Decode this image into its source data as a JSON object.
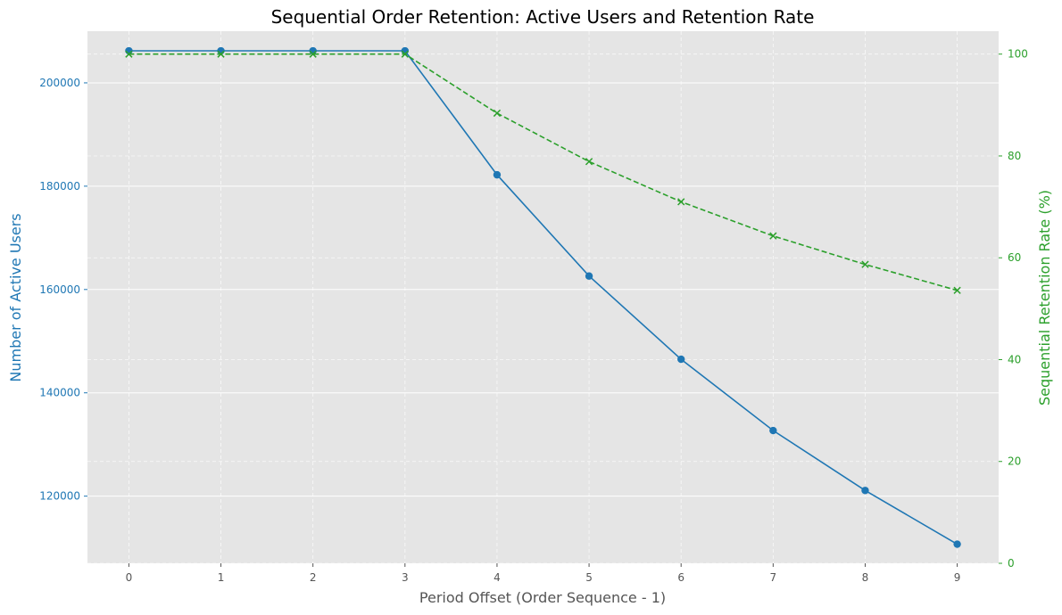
{
  "chart_data": {
    "type": "line",
    "title": "Sequential Order Retention: Active Users and Retention Rate",
    "xlabel": "Period Offset (Order Sequence - 1)",
    "ylabel_left": "Number of Active Users",
    "ylabel_right": "Sequential Retention Rate (%)",
    "x": [
      0,
      1,
      2,
      3,
      4,
      5,
      6,
      7,
      8,
      9
    ],
    "x_ticks": [
      "0",
      "1",
      "2",
      "3",
      "4",
      "5",
      "6",
      "7",
      "8",
      "9"
    ],
    "xlim": [
      -0.45,
      9.45
    ],
    "y_left_lim": [
      107000,
      210000
    ],
    "y_left_ticks": [
      120000,
      140000,
      160000,
      180000,
      200000
    ],
    "y_right_lim": [
      0,
      104.5
    ],
    "y_right_ticks": [
      0,
      20,
      40,
      60,
      80,
      100
    ],
    "grid": true,
    "series": [
      {
        "axis": "left",
        "color": "#1f77b4",
        "line_style": "solid",
        "marker": "circle",
        "values": [
          206200,
          206200,
          206200,
          206200,
          182200,
          162600,
          146500,
          132700,
          121100,
          110700
        ]
      },
      {
        "axis": "right",
        "color": "#2ca02c",
        "line_style": "dashed",
        "marker": "x",
        "values": [
          100,
          100,
          100,
          100,
          88.4,
          78.9,
          71.0,
          64.3,
          58.7,
          53.6
        ]
      }
    ]
  },
  "colors": {
    "plot_background": "#e5e5e5",
    "grid": "#ffffff",
    "left_axis": "#1f77b4",
    "right_axis": "#2ca02c",
    "x_axis": "#555555"
  }
}
